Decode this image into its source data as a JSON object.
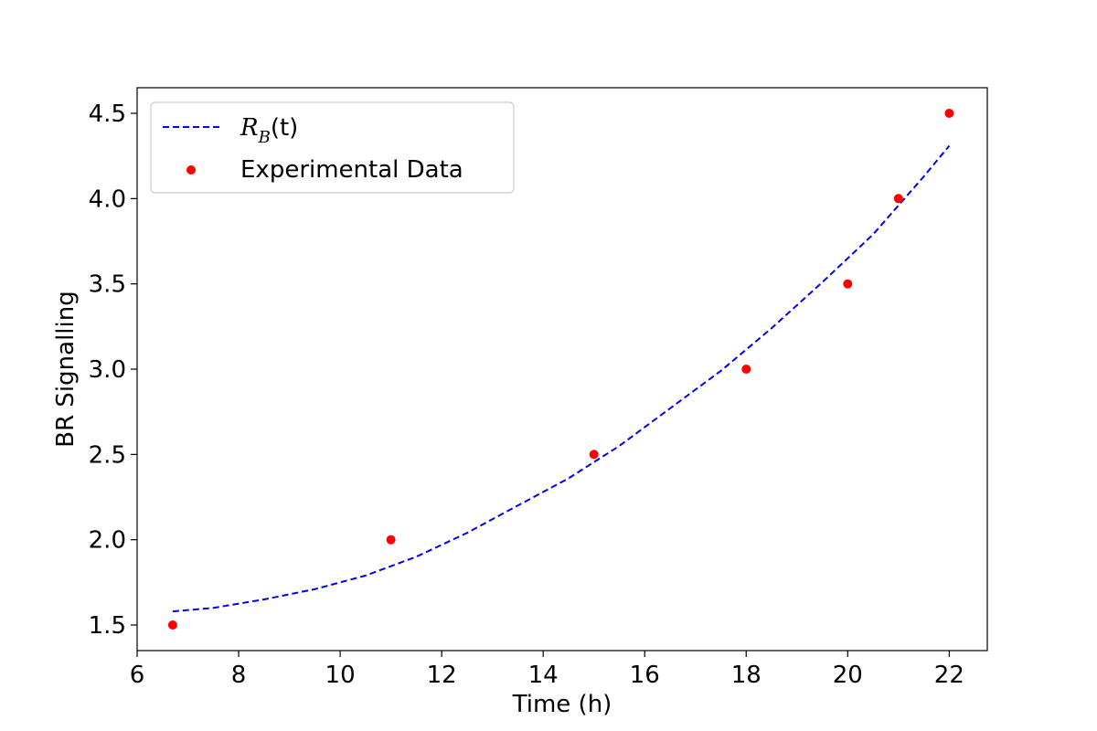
{
  "chart_data": {
    "type": "scatter",
    "title": "",
    "xlabel": "Time (h)",
    "ylabel": "BR Signalling",
    "xlim": [
      6,
      22.75
    ],
    "ylim": [
      1.35,
      4.65
    ],
    "xticks": [
      6,
      8,
      10,
      12,
      14,
      16,
      18,
      20,
      22
    ],
    "yticks": [
      1.5,
      2.0,
      2.5,
      3.0,
      3.5,
      4.0,
      4.5
    ],
    "xtick_labels": [
      "6",
      "8",
      "10",
      "12",
      "14",
      "16",
      "18",
      "20",
      "22"
    ],
    "ytick_labels": [
      "1.5",
      "2.0",
      "2.5",
      "3.0",
      "3.5",
      "4.0",
      "4.5"
    ],
    "grid": false,
    "legend_position": "top-left",
    "series": [
      {
        "name": "R_B(t)",
        "legend_main": "R",
        "legend_sub": "B",
        "legend_tail": "(t)",
        "kind": "line",
        "style": "dashed",
        "color": "#0000ee",
        "x": [
          6.7,
          7.5,
          8.5,
          9.5,
          10.5,
          11.5,
          12.5,
          13.5,
          14.5,
          15.5,
          16.5,
          17.5,
          18.5,
          19.5,
          20.5,
          21.5,
          22.0
        ],
        "y": [
          1.58,
          1.6,
          1.65,
          1.71,
          1.79,
          1.9,
          2.04,
          2.2,
          2.36,
          2.55,
          2.77,
          2.99,
          3.24,
          3.51,
          3.79,
          4.13,
          4.31
        ]
      },
      {
        "name": "Experimental Data",
        "kind": "scatter",
        "color": "#ff0000",
        "x": [
          6.7,
          11,
          15,
          18,
          20,
          21,
          22
        ],
        "y": [
          1.5,
          2.0,
          2.5,
          3.0,
          3.5,
          4.0,
          4.5
        ]
      }
    ]
  }
}
